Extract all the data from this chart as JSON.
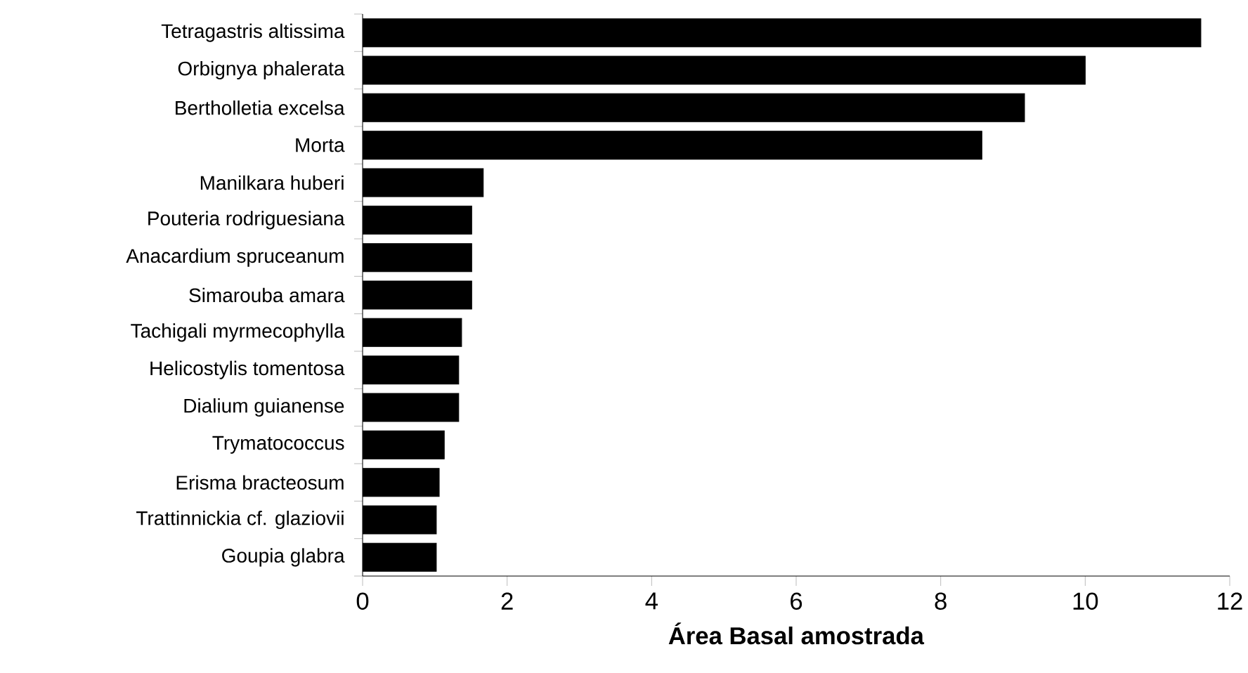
{
  "chart_data": {
    "type": "bar",
    "orientation": "horizontal",
    "xlabel": "**Área Basal amostrada**",
    "categories": [
      "Tetragastris altissima",
      "Orbignya phalerata",
      "Bertholletia excelsa",
      "Morta",
      "Manilkara huberi",
      "Pouteria rodriguesiana",
      "Anacardium spruceanum",
      "Simarouba amara",
      "Tachigali myrmecophylla",
      "Helicostylis tomentosa",
      "Dialium guianense",
      "Trymatococcus",
      "Erisma bracteosum",
      "Trattinnickia cf. glaziovii",
      "Goupia glabra"
    ],
    "values": [
      11.6,
      10.0,
      9.16,
      8.57,
      1.67,
      1.51,
      1.51,
      1.51,
      1.37,
      1.33,
      1.33,
      1.13,
      1.06,
      1.02,
      1.02
    ],
    "color": "#000000",
    "xlim": [
      0,
      12
    ],
    "xticks": [
      0,
      2,
      4,
      6,
      8,
      10,
      12
    ]
  }
}
